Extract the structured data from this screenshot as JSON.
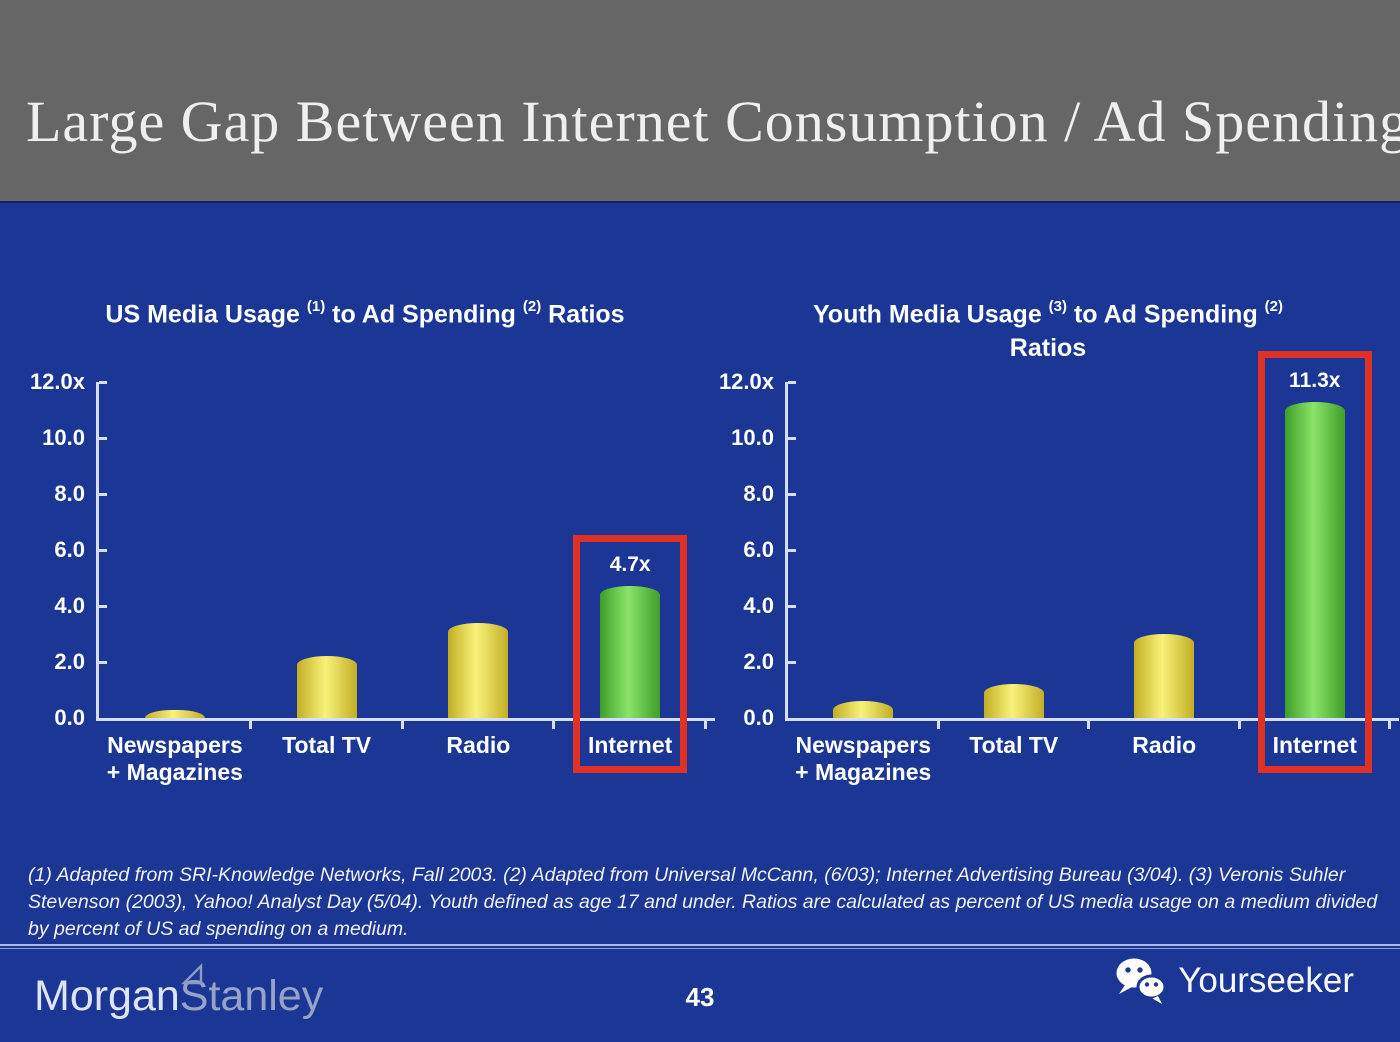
{
  "slide": {
    "title": "Large Gap Between Internet Consumption / Ad Spending",
    "page_number": "43",
    "footnote": "(1) Adapted from SRI-Knowledge Networks, Fall 2003.  (2) Adapted from Universal McCann, (6/03); Internet Advertising Bureau (3/04). (3) Veronis Suhler Stevenson (2003), Yahoo! Analyst Day (5/04).  Youth defined as age 17 and under.  Ratios are calculated as percent of US media usage on a medium divided by percent of US ad spending on a medium.",
    "brand": {
      "morgan": "Morgan",
      "stanley": "Stanley",
      "yourseeker": "Yourseeker"
    },
    "colors": {
      "background": "#1B3694",
      "header_gray": "#666666",
      "axis": "#D5DEF5",
      "bar_yellow_edge": "#C2AE25",
      "bar_yellow_center": "#F8F27A",
      "bar_green_edge": "#3E9E28",
      "bar_green_center": "#8BE469",
      "highlight_red": "#E03127",
      "text_white": "#FFFFFF"
    }
  },
  "chart_data": [
    {
      "type": "bar",
      "title": {
        "pre": "US Media Usage ",
        "sup1": "(1)",
        "mid": " to Ad Spending ",
        "sup2": "(2)",
        "post": " Ratios",
        "line2": ""
      },
      "title_text": "US Media Usage (1) to Ad Spending (2) Ratios",
      "categories": [
        [
          "Newspapers",
          "+ Magazines"
        ],
        [
          "Total TV"
        ],
        [
          "Radio"
        ],
        [
          "Internet"
        ]
      ],
      "values": [
        0.3,
        2.2,
        3.4,
        4.7
      ],
      "bar_colors": [
        "yellow",
        "yellow",
        "yellow",
        "green"
      ],
      "ylim": [
        0,
        12
      ],
      "yticks": [
        {
          "v": 12,
          "label": "12.0x"
        },
        {
          "v": 10,
          "label": "10.0"
        },
        {
          "v": 8,
          "label": "8.0"
        },
        {
          "v": 6,
          "label": "6.0"
        },
        {
          "v": 4,
          "label": "4.0"
        },
        {
          "v": 2,
          "label": "2.0"
        },
        {
          "v": 0,
          "label": "0.0"
        }
      ],
      "xlabel": "",
      "ylabel": "",
      "grid": false,
      "legend": null,
      "highlight": {
        "index": 3,
        "value_label": "4.7x"
      }
    },
    {
      "type": "bar",
      "title": {
        "pre": "Youth Media Usage ",
        "sup1": "(3)",
        "mid": " to Ad Spending ",
        "sup2": "(2)",
        "post": "",
        "line2": "Ratios"
      },
      "title_text": "Youth Media Usage (3) to Ad Spending (2) Ratios",
      "categories": [
        [
          "Newspapers",
          "+ Magazines"
        ],
        [
          "Total TV"
        ],
        [
          "Radio"
        ],
        [
          "Internet"
        ]
      ],
      "values": [
        0.6,
        1.2,
        3.0,
        11.3
      ],
      "bar_colors": [
        "yellow",
        "yellow",
        "yellow",
        "green"
      ],
      "ylim": [
        0,
        12
      ],
      "yticks": [
        {
          "v": 12,
          "label": "12.0x"
        },
        {
          "v": 10,
          "label": "10.0"
        },
        {
          "v": 8,
          "label": "8.0"
        },
        {
          "v": 6,
          "label": "6.0"
        },
        {
          "v": 4,
          "label": "4.0"
        },
        {
          "v": 2,
          "label": "2.0"
        },
        {
          "v": 0,
          "label": "0.0"
        }
      ],
      "xlabel": "",
      "ylabel": "",
      "grid": false,
      "legend": null,
      "highlight": {
        "index": 3,
        "value_label": "11.3x"
      }
    }
  ]
}
